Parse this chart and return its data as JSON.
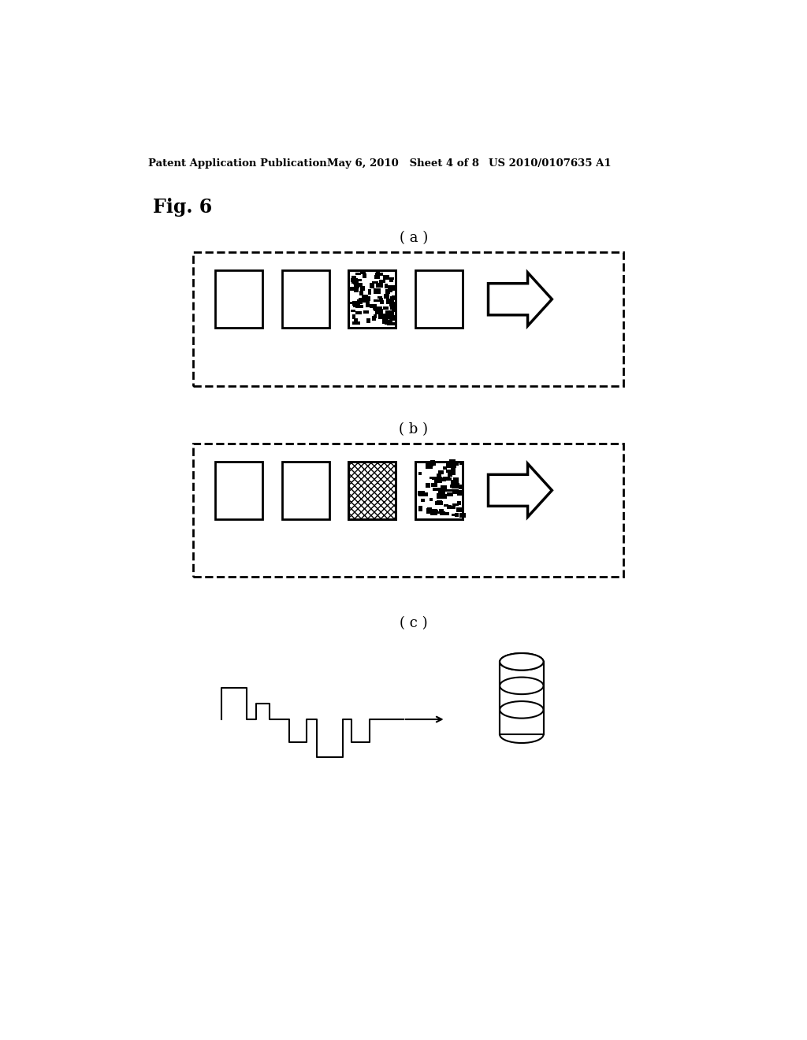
{
  "bg_color": "#ffffff",
  "header_text": "Patent Application Publication",
  "header_date": "May 6, 2010   Sheet 4 of 8",
  "header_patent": "US 2010/0107635 A1",
  "fig_label": "Fig. 6",
  "section_a_label": "( a )",
  "section_b_label": "( b )",
  "section_c_label": "( c )"
}
